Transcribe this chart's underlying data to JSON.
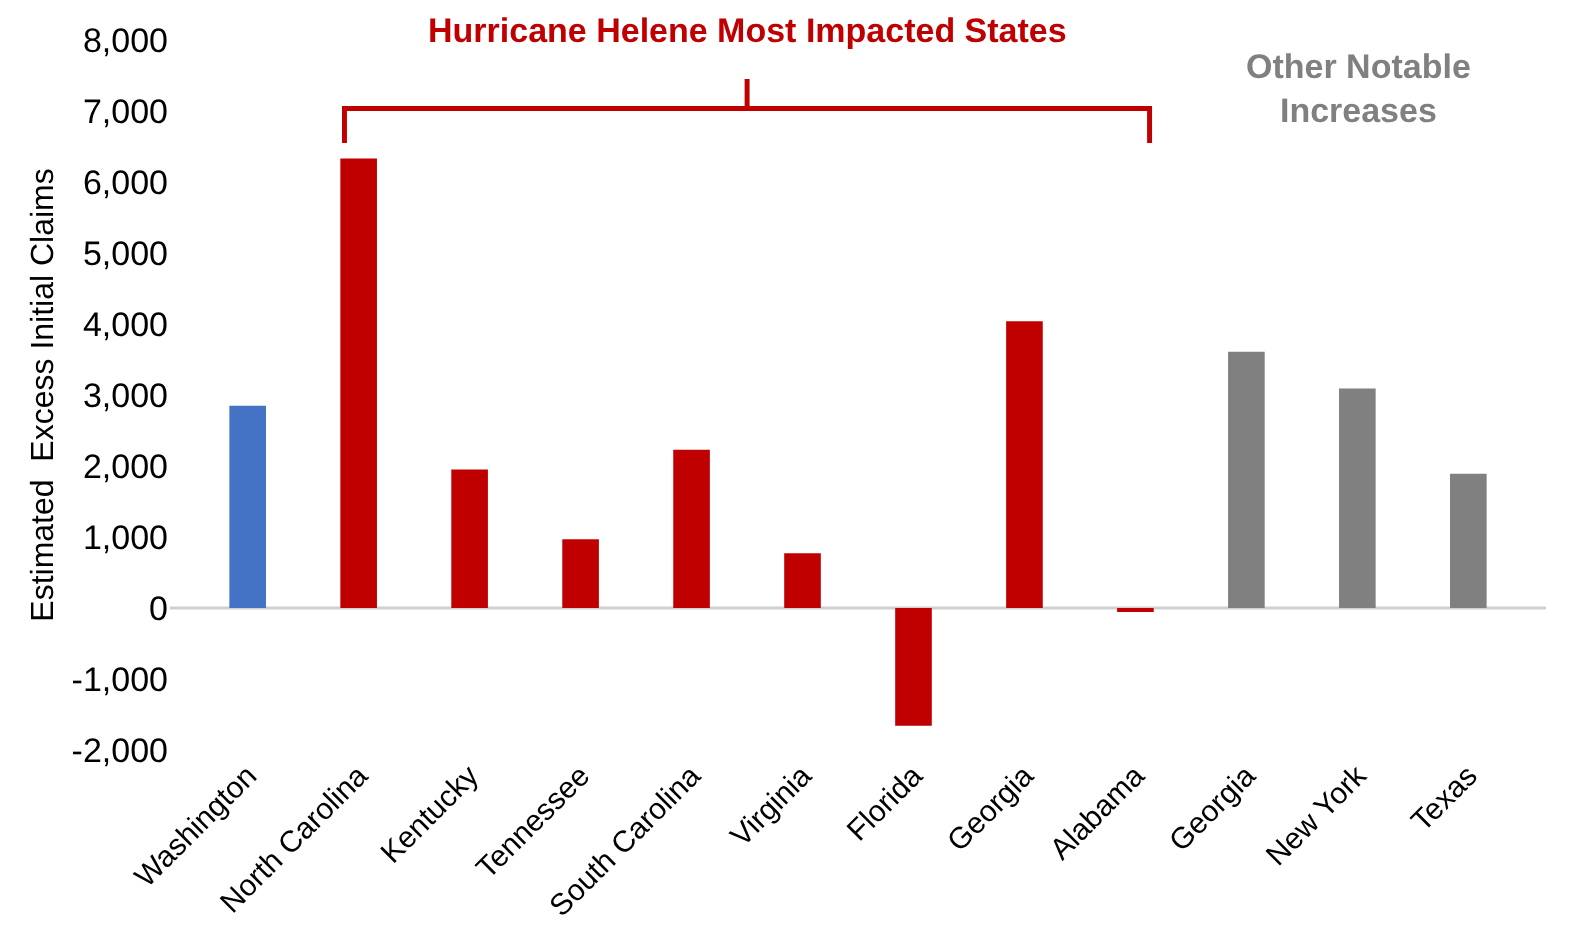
{
  "chart_data": {
    "type": "bar",
    "categories": [
      "Washington",
      "North Carolina",
      "Kentucky",
      "Tennessee",
      "South Carolina",
      "Virginia",
      "Florida",
      "Georgia",
      "Alabama",
      "Georgia",
      "New York",
      "Texas"
    ],
    "values": [
      2850,
      6330,
      1950,
      970,
      2230,
      770,
      -1660,
      4040,
      -30,
      3610,
      3090,
      1890
    ],
    "colors": [
      "#4472c4",
      "#c00000",
      "#c00000",
      "#c00000",
      "#c00000",
      "#c00000",
      "#c00000",
      "#c00000",
      "#c00000",
      "#808080",
      "#808080",
      "#808080"
    ],
    "ylabel": "Estimated  Excess Initial Claims",
    "ylim": [
      -2000,
      8000
    ],
    "yticks": [
      {
        "value": -2000,
        "label": "-2,000"
      },
      {
        "value": -1000,
        "label": "-1,000"
      },
      0,
      {
        "value": 1000,
        "label": "1,000"
      },
      {
        "value": 2000,
        "label": "2,000"
      },
      {
        "value": 3000,
        "label": "3,000"
      },
      {
        "value": 4000,
        "label": "4,000"
      },
      {
        "value": 5000,
        "label": "5,000"
      },
      {
        "value": 6000,
        "label": "6,000"
      },
      {
        "value": 7000,
        "label": "7,000"
      },
      {
        "value": 8000,
        "label": "8,000"
      }
    ],
    "annotations": [
      "Hurricane Helene Most Impacted States",
      "Other Notable Increases"
    ],
    "ref_lines": [
      {
        "axis": "y",
        "value": 0,
        "color": "#d0d0d0"
      }
    ],
    "grid": false
  }
}
